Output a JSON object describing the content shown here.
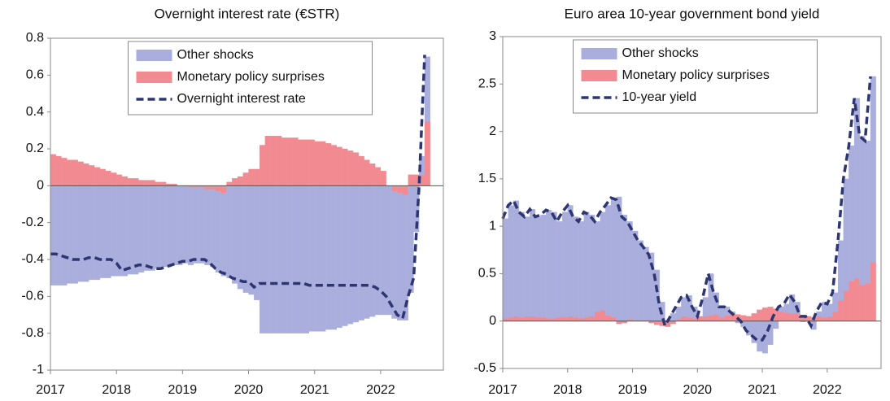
{
  "chart_data": [
    {
      "type": "bar_line",
      "title": "Overnight interest rate (€STR)",
      "x": [
        2017,
        2017.083,
        2017.167,
        2017.25,
        2017.333,
        2017.417,
        2017.5,
        2017.583,
        2017.667,
        2017.75,
        2017.833,
        2017.917,
        2018,
        2018.083,
        2018.167,
        2018.25,
        2018.333,
        2018.417,
        2018.5,
        2018.583,
        2018.667,
        2018.75,
        2018.833,
        2018.917,
        2019,
        2019.083,
        2019.167,
        2019.25,
        2019.333,
        2019.417,
        2019.5,
        2019.583,
        2019.667,
        2019.75,
        2019.833,
        2019.917,
        2020,
        2020.083,
        2020.167,
        2020.25,
        2020.333,
        2020.417,
        2020.5,
        2020.583,
        2020.667,
        2020.75,
        2020.833,
        2020.917,
        2021,
        2021.083,
        2021.167,
        2021.25,
        2021.333,
        2021.417,
        2021.5,
        2021.583,
        2021.667,
        2021.75,
        2021.833,
        2021.917,
        2022,
        2022.083,
        2022.167,
        2022.25,
        2022.333,
        2022.417,
        2022.5,
        2022.583,
        2022.667
      ],
      "series": [
        {
          "name": "Other shocks",
          "type": "bar",
          "color": "#aaaedd",
          "values": [
            -0.54,
            -0.54,
            -0.54,
            -0.53,
            -0.53,
            -0.52,
            -0.52,
            -0.51,
            -0.51,
            -0.5,
            -0.5,
            -0.49,
            -0.49,
            -0.49,
            -0.48,
            -0.48,
            -0.47,
            -0.46,
            -0.46,
            -0.45,
            -0.44,
            -0.44,
            -0.43,
            -0.43,
            -0.42,
            -0.42,
            -0.41,
            -0.41,
            -0.41,
            -0.42,
            -0.44,
            -0.45,
            -0.5,
            -0.53,
            -0.56,
            -0.58,
            -0.59,
            -0.62,
            -0.8,
            -0.8,
            -0.8,
            -0.8,
            -0.8,
            -0.8,
            -0.8,
            -0.8,
            -0.8,
            -0.79,
            -0.79,
            -0.79,
            -0.78,
            -0.78,
            -0.77,
            -0.76,
            -0.75,
            -0.74,
            -0.73,
            -0.72,
            -0.71,
            -0.7,
            -0.7,
            -0.7,
            -0.69,
            -0.69,
            -0.68,
            -0.58,
            -0.25,
            0.1,
            0.35
          ]
        },
        {
          "name": "Monetary policy surprises",
          "type": "bar",
          "color": "#f28a92",
          "values": [
            0.17,
            0.16,
            0.15,
            0.14,
            0.14,
            0.13,
            0.12,
            0.11,
            0.1,
            0.09,
            0.08,
            0.07,
            0.06,
            0.05,
            0.04,
            0.04,
            0.03,
            0.03,
            0.03,
            0.02,
            0.02,
            0.01,
            0.01,
            0,
            0,
            -0.01,
            -0.01,
            -0.01,
            -0.02,
            -0.02,
            -0.03,
            -0.04,
            0.02,
            0.04,
            0.05,
            0.07,
            0.09,
            0.09,
            0.22,
            0.27,
            0.27,
            0.27,
            0.26,
            0.26,
            0.26,
            0.25,
            0.25,
            0.25,
            0.24,
            0.24,
            0.23,
            0.22,
            0.21,
            0.2,
            0.19,
            0.18,
            0.16,
            0.14,
            0.12,
            0.1,
            0.08,
            0,
            -0.03,
            -0.04,
            -0.05,
            0.06,
            0.06,
            0.06,
            0.35
          ]
        },
        {
          "name": "Overnight interest rate",
          "type": "line",
          "color": "#2d3670",
          "values": [
            -0.37,
            -0.37,
            -0.38,
            -0.39,
            -0.4,
            -0.4,
            -0.4,
            -0.39,
            -0.39,
            -0.4,
            -0.4,
            -0.4,
            -0.42,
            -0.46,
            -0.45,
            -0.44,
            -0.43,
            -0.43,
            -0.44,
            -0.45,
            -0.45,
            -0.44,
            -0.43,
            -0.42,
            -0.41,
            -0.41,
            -0.4,
            -0.4,
            -0.4,
            -0.42,
            -0.45,
            -0.47,
            -0.48,
            -0.5,
            -0.51,
            -0.52,
            -0.52,
            -0.55,
            -0.53,
            -0.53,
            -0.53,
            -0.53,
            -0.53,
            -0.53,
            -0.53,
            -0.53,
            -0.53,
            -0.54,
            -0.54,
            -0.54,
            -0.54,
            -0.54,
            -0.54,
            -0.54,
            -0.54,
            -0.54,
            -0.54,
            -0.54,
            -0.54,
            -0.55,
            -0.57,
            -0.6,
            -0.65,
            -0.7,
            -0.72,
            -0.6,
            -0.5,
            0,
            0.71
          ]
        }
      ],
      "xlim": [
        2017,
        2022.95
      ],
      "xticks": [
        2017,
        2018,
        2019,
        2020,
        2021,
        2022
      ],
      "ylim": [
        -1,
        0.8
      ],
      "yticks": [
        -1,
        -0.8,
        -0.6,
        -0.4,
        -0.2,
        0,
        0.2,
        0.4,
        0.6,
        0.8
      ],
      "legend": "upper center"
    },
    {
      "type": "bar_line",
      "title": "Euro area 10-year government bond yield",
      "x": [
        2017,
        2017.083,
        2017.167,
        2017.25,
        2017.333,
        2017.417,
        2017.5,
        2017.583,
        2017.667,
        2017.75,
        2017.833,
        2017.917,
        2018,
        2018.083,
        2018.167,
        2018.25,
        2018.333,
        2018.417,
        2018.5,
        2018.583,
        2018.667,
        2018.75,
        2018.833,
        2018.917,
        2019,
        2019.083,
        2019.167,
        2019.25,
        2019.333,
        2019.417,
        2019.5,
        2019.583,
        2019.667,
        2019.75,
        2019.833,
        2019.917,
        2020,
        2020.083,
        2020.167,
        2020.25,
        2020.333,
        2020.417,
        2020.5,
        2020.583,
        2020.667,
        2020.75,
        2020.833,
        2020.917,
        2021,
        2021.083,
        2021.167,
        2021.25,
        2021.333,
        2021.417,
        2021.5,
        2021.583,
        2021.667,
        2021.75,
        2021.833,
        2021.917,
        2022,
        2022.083,
        2022.167,
        2022.25,
        2022.333,
        2022.417,
        2022.5,
        2022.583,
        2022.667
      ],
      "series": [
        {
          "name": "Other shocks",
          "type": "bar",
          "color": "#aaaedd",
          "values": [
            1.05,
            1.18,
            1.22,
            1.11,
            1.05,
            1.13,
            1.06,
            1.08,
            1.14,
            1.12,
            1.01,
            1.11,
            1.17,
            1.06,
            1.02,
            1.11,
            1.07,
            0.95,
            1.04,
            1.16,
            1.26,
            1.31,
            1.12,
            1.03,
            0.94,
            0.84,
            0.77,
            0.72,
            0.54,
            0.2,
            0.01,
            0.08,
            0.13,
            0.2,
            0.23,
            0.12,
            0,
            0.2,
            0.44,
            0.23,
            0.11,
            0.09,
            0.02,
            -0.02,
            -0.06,
            -0.15,
            -0.23,
            -0.32,
            -0.34,
            -0.25,
            -0.08,
            0.05,
            0.09,
            0.2,
            0.12,
            -0.01,
            0,
            -0.09,
            0.05,
            0.16,
            0.13,
            0.2,
            0.63,
            1.18,
            1.43,
            1.9,
            1.57,
            1.5,
            1.96
          ]
        },
        {
          "name": "Monetary policy surprises",
          "type": "bar",
          "color": "#f28a92",
          "values": [
            0.03,
            0.04,
            0.05,
            0.04,
            0.05,
            0.05,
            0.04,
            0.04,
            0.03,
            0.03,
            0.04,
            0.04,
            0.05,
            0.04,
            0.03,
            0.04,
            0.05,
            0.1,
            0.11,
            0.06,
            0.04,
            -0.03,
            -0.02,
            0.02,
            0.01,
            0.01,
            0.01,
            -0.02,
            -0.04,
            -0.05,
            -0.06,
            -0.03,
            0.02,
            0.05,
            0.04,
            0.03,
            0.05,
            0.05,
            0.06,
            0.07,
            0.04,
            0.06,
            0.08,
            0.07,
            0.06,
            0.05,
            0.08,
            0.12,
            0.14,
            0.15,
            0.13,
            0.1,
            0.09,
            0.08,
            0.08,
            0.06,
            0.05,
            0.04,
            0.05,
            0.04,
            0.05,
            0.1,
            0.22,
            0.32,
            0.42,
            0.45,
            0.38,
            0.4,
            0.62
          ]
        },
        {
          "name": "10-year yield",
          "type": "line",
          "color": "#2d3670",
          "values": [
            1.08,
            1.22,
            1.27,
            1.15,
            1.1,
            1.18,
            1.1,
            1.12,
            1.17,
            1.15,
            1.05,
            1.15,
            1.22,
            1.1,
            1.05,
            1.15,
            1.12,
            1.05,
            1.15,
            1.22,
            1.3,
            1.28,
            1.1,
            1.05,
            0.95,
            0.85,
            0.78,
            0.7,
            0.5,
            0.15,
            -0.05,
            0.05,
            0.15,
            0.25,
            0.27,
            0.15,
            0.05,
            0.25,
            0.5,
            0.3,
            0.15,
            0.15,
            0.1,
            0.05,
            0,
            -0.1,
            -0.15,
            -0.2,
            -0.2,
            -0.1,
            0.05,
            0.15,
            0.18,
            0.28,
            0.2,
            0.05,
            0.05,
            -0.05,
            0.1,
            0.2,
            0.18,
            0.3,
            0.85,
            1.5,
            1.85,
            2.35,
            1.95,
            1.9,
            2.58
          ]
        }
      ],
      "xlim": [
        2017,
        2022.83
      ],
      "xticks": [
        2017,
        2018,
        2019,
        2020,
        2021,
        2022
      ],
      "ylim": [
        -0.5,
        3
      ],
      "yticks": [
        -0.5,
        0,
        0.5,
        1,
        1.5,
        2,
        2.5,
        3
      ],
      "legend": "upper center"
    }
  ]
}
